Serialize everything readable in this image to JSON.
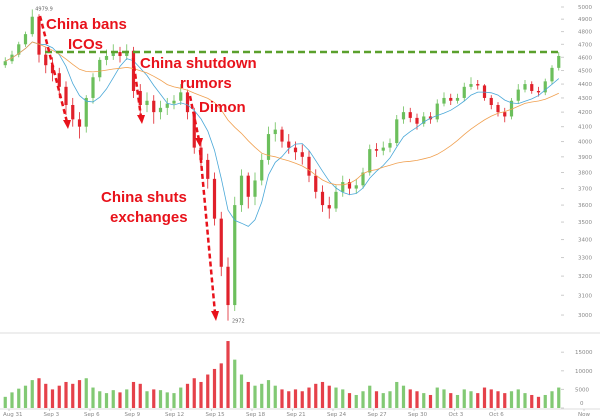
{
  "chart_data": {
    "type": "candlestick",
    "interval": "12h",
    "price_scale": "log",
    "ylim": [
      2950,
      5050
    ],
    "grid": false,
    "colors": {
      "up": "#6cbf5c",
      "down": "#e0202a",
      "fast_ma": "#4aa8d8",
      "slow_ma": "#f0a050",
      "resistance": "#5aa02c",
      "annotation": "#e8121b"
    },
    "y_ticks": [
      5000,
      4900,
      4800,
      4700,
      4600,
      4500,
      4400,
      4300,
      4200,
      4100,
      4000,
      3900,
      3800,
      3700,
      3600,
      3500,
      3400,
      3300,
      3200,
      3100,
      3000
    ],
    "x_ticks": [
      "Aug 31",
      "Sep 3",
      "Sep 6",
      "Sep 9",
      "Sep 12",
      "Sep 15",
      "Sep 18",
      "Sep 21",
      "Sep 24",
      "Sep 27",
      "Sep 30",
      "Oct 3",
      "Oct 6",
      "Now"
    ],
    "volume_ticks": [
      15000,
      10000,
      5000,
      0
    ],
    "high_label": "4979.9",
    "low_label": "2972",
    "resistance_level": 4640,
    "ohlc": [
      [
        4540,
        4600,
        4520,
        4570
      ],
      [
        4570,
        4650,
        4550,
        4620
      ],
      [
        4620,
        4720,
        4600,
        4700
      ],
      [
        4700,
        4800,
        4680,
        4780
      ],
      [
        4780,
        4979.9,
        4760,
        4920
      ],
      [
        4920,
        4940,
        4560,
        4620
      ],
      [
        4620,
        4680,
        4480,
        4540
      ],
      [
        4540,
        4600,
        4420,
        4480
      ],
      [
        4480,
        4520,
        4300,
        4380
      ],
      [
        4380,
        4420,
        4180,
        4250
      ],
      [
        4250,
        4300,
        4100,
        4150
      ],
      [
        4150,
        4200,
        4020,
        4100
      ],
      [
        4100,
        4320,
        4060,
        4300
      ],
      [
        4300,
        4480,
        4260,
        4450
      ],
      [
        4450,
        4600,
        4420,
        4580
      ],
      [
        4580,
        4660,
        4540,
        4610
      ],
      [
        4610,
        4700,
        4580,
        4640
      ],
      [
        4640,
        4680,
        4560,
        4610
      ],
      [
        4610,
        4700,
        4580,
        4650
      ],
      [
        4650,
        4680,
        4300,
        4350
      ],
      [
        4350,
        4400,
        4180,
        4250
      ],
      [
        4250,
        4340,
        4200,
        4280
      ],
      [
        4280,
        4320,
        4120,
        4200
      ],
      [
        4200,
        4280,
        4150,
        4230
      ],
      [
        4230,
        4300,
        4180,
        4260
      ],
      [
        4260,
        4320,
        4220,
        4280
      ],
      [
        4280,
        4400,
        4250,
        4340
      ],
      [
        4340,
        4360,
        4150,
        4200
      ],
      [
        4200,
        4230,
        3920,
        3960
      ],
      [
        3960,
        4000,
        3820,
        3880
      ],
      [
        3880,
        3920,
        3700,
        3760
      ],
      [
        3760,
        3800,
        3480,
        3520
      ],
      [
        3520,
        3560,
        3200,
        3250
      ],
      [
        3250,
        3300,
        2972,
        3050
      ],
      [
        3050,
        3650,
        3020,
        3600
      ],
      [
        3600,
        3820,
        3560,
        3780
      ],
      [
        3780,
        3800,
        3580,
        3650
      ],
      [
        3650,
        3800,
        3600,
        3750
      ],
      [
        3750,
        3920,
        3720,
        3880
      ],
      [
        3880,
        4100,
        3850,
        4050
      ],
      [
        4050,
        4130,
        4000,
        4080
      ],
      [
        4080,
        4100,
        3960,
        4000
      ],
      [
        4000,
        4050,
        3920,
        3960
      ],
      [
        3960,
        4000,
        3880,
        3930
      ],
      [
        3930,
        3980,
        3850,
        3900
      ],
      [
        3900,
        3940,
        3740,
        3780
      ],
      [
        3780,
        3820,
        3640,
        3680
      ],
      [
        3680,
        3720,
        3560,
        3600
      ],
      [
        3600,
        3650,
        3520,
        3580
      ],
      [
        3580,
        3720,
        3560,
        3680
      ],
      [
        3680,
        3780,
        3650,
        3740
      ],
      [
        3740,
        3760,
        3660,
        3700
      ],
      [
        3700,
        3760,
        3670,
        3720
      ],
      [
        3720,
        3830,
        3700,
        3800
      ],
      [
        3800,
        3980,
        3780,
        3950
      ],
      [
        3950,
        3990,
        3900,
        3940
      ],
      [
        3940,
        4000,
        3910,
        3960
      ],
      [
        3960,
        4020,
        3930,
        3990
      ],
      [
        3990,
        4180,
        3970,
        4150
      ],
      [
        4150,
        4240,
        4120,
        4200
      ],
      [
        4200,
        4230,
        4130,
        4160
      ],
      [
        4160,
        4190,
        4080,
        4120
      ],
      [
        4120,
        4200,
        4100,
        4170
      ],
      [
        4170,
        4200,
        4120,
        4150
      ],
      [
        4150,
        4290,
        4130,
        4260
      ],
      [
        4260,
        4340,
        4240,
        4300
      ],
      [
        4300,
        4330,
        4250,
        4280
      ],
      [
        4280,
        4330,
        4260,
        4300
      ],
      [
        4300,
        4410,
        4280,
        4380
      ],
      [
        4380,
        4450,
        4360,
        4400
      ],
      [
        4400,
        4430,
        4360,
        4390
      ],
      [
        4390,
        4400,
        4280,
        4300
      ],
      [
        4300,
        4320,
        4220,
        4250
      ],
      [
        4250,
        4270,
        4170,
        4200
      ],
      [
        4200,
        4230,
        4130,
        4170
      ],
      [
        4170,
        4300,
        4150,
        4280
      ],
      [
        4280,
        4400,
        4260,
        4360
      ],
      [
        4360,
        4430,
        4340,
        4400
      ],
      [
        4400,
        4420,
        4330,
        4350
      ],
      [
        4350,
        4380,
        4310,
        4340
      ],
      [
        4340,
        4440,
        4320,
        4420
      ],
      [
        4420,
        4540,
        4400,
        4520
      ],
      [
        4520,
        4640,
        4500,
        4610
      ]
    ],
    "volume": [
      3000,
      4200,
      5200,
      6000,
      7500,
      8000,
      6500,
      5000,
      6000,
      7000,
      6500,
      7500,
      8000,
      5500,
      4500,
      4000,
      4800,
      4200,
      5000,
      7000,
      6500,
      4500,
      5000,
      4800,
      4200,
      4000,
      5500,
      6500,
      8000,
      7000,
      9000,
      10500,
      12000,
      18000,
      13000,
      9000,
      7000,
      6000,
      6500,
      7500,
      6000,
      5000,
      4500,
      5000,
      4500,
      5500,
      6500,
      7000,
      6000,
      5500,
      5000,
      4000,
      3500,
      4500,
      6000,
      4500,
      4000,
      4500,
      7000,
      6000,
      5000,
      4500,
      4000,
      3500,
      5500,
      5000,
      4000,
      3500,
      5000,
      4500,
      4000,
      5500,
      5000,
      4500,
      4000,
      4500,
      5000,
      4000,
      3500,
      3000,
      3500,
      4500,
      5500
    ],
    "annotations": [
      {
        "lines": [
          "China bans",
          "ICOs"
        ]
      },
      {
        "lines": [
          "China shutdown",
          "rumors"
        ]
      },
      {
        "lines": [
          "Dimon"
        ]
      },
      {
        "lines": [
          "China shuts",
          "exchanges"
        ]
      }
    ]
  }
}
